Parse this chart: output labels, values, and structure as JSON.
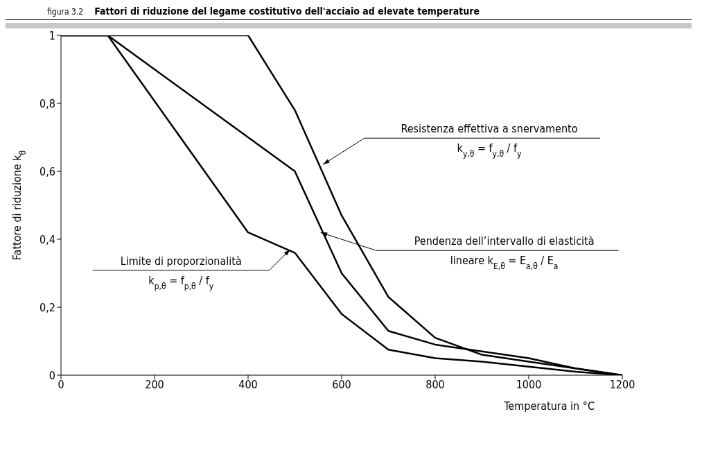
{
  "chart_data": {
    "type": "line",
    "subtitle": "figura 3.2",
    "title": "Fattori di riduzione del legame costitutivo dell'acciaio ad elevate temperature",
    "xlabel": "Temperatura in °C",
    "ylabel": "Fattore di riduzione k$_{θ}$",
    "series": [
      {
        "color": "#000000",
        "x": [
          0,
          400,
          500,
          600,
          700,
          800,
          900,
          1000,
          1100,
          1200
        ],
        "values": [
          1,
          1,
          0.78,
          0.47,
          0.23,
          0.11,
          0.06,
          0.04,
          0.02,
          0
        ]
      },
      {
        "color": "#000000",
        "x": [
          0,
          100,
          500,
          600,
          700,
          800,
          900,
          1000,
          1100,
          1200
        ],
        "values": [
          1,
          1,
          0.6,
          0.3,
          0.13,
          0.09,
          0.07,
          0.05,
          0.02,
          0
        ]
      },
      {
        "color": "#000000",
        "x": [
          0,
          100,
          400,
          500,
          600,
          700,
          800,
          900,
          1000,
          1100,
          1200
        ],
        "values": [
          1,
          1,
          0.42,
          0.36,
          0.18,
          0.075,
          0.05,
          0.04,
          0.025,
          0.01,
          0
        ]
      }
    ],
    "xlim": [
      0,
      1200
    ],
    "xticks": [
      0,
      200,
      400,
      600,
      800,
      1000,
      1200
    ],
    "ylim": [
      0,
      1
    ],
    "yticks": [
      0,
      {
        "value": 0.2,
        "label": "0,2"
      },
      {
        "value": 0.4,
        "label": "0,4"
      },
      {
        "value": 0.6,
        "label": "0,6"
      },
      {
        "value": 0.8,
        "label": "0,8"
      },
      1
    ],
    "grid": false,
    "legend": false,
    "marker": "none",
    "line_style": "solid",
    "annotations": [
      {
        "text": "Resistenza effettiva a snervamento\nk$_{y,θ}$ = f$_{y,θ}$ / f$_{y}$",
        "x": 560,
        "y": 0.62
      },
      {
        "text": "Pendenza dell’intervallo di elasticità\nlineare  k$_{E,θ}$ = E$_{a,θ}$ / E$_{a}$",
        "x": 555,
        "y": 0.42
      },
      {
        "text": "Limite di proporzionalità\nk$_{p,θ}$ = f$_{p,θ}$ / f$_{y}$",
        "x": 490,
        "y": 0.37
      }
    ]
  }
}
